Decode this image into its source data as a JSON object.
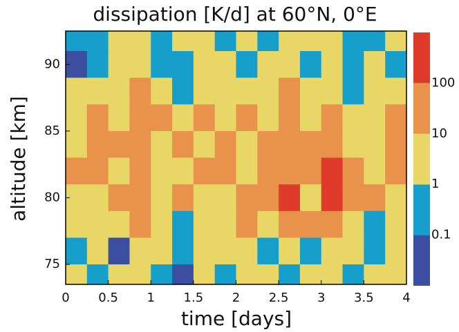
{
  "chart_data": {
    "type": "contour",
    "title": "dissipation [K/d] at 60°N, 0°E",
    "x_label": "time [days]",
    "y_label": "altitude [km]",
    "x": [
      0.125,
      0.375,
      0.625,
      0.875,
      1.125,
      1.375,
      1.625,
      1.875,
      2.125,
      2.375,
      2.625,
      2.875,
      3.125,
      3.375,
      3.625,
      3.875
    ],
    "y": [
      92,
      90,
      88,
      86,
      84,
      82,
      80,
      78,
      76,
      74
    ],
    "z": [
      [
        0.5,
        0.5,
        5,
        5,
        0.5,
        5,
        5,
        0.5,
        5,
        0.5,
        5,
        5,
        5,
        0.5,
        0.5,
        5
      ],
      [
        0.05,
        0.5,
        5,
        5,
        0.5,
        0.5,
        5,
        5,
        0.5,
        5,
        5,
        0.5,
        5,
        0.5,
        5,
        0.5
      ],
      [
        5,
        5,
        5,
        50,
        5,
        0.5,
        5,
        5,
        5,
        5,
        50,
        5,
        5,
        0.5,
        5,
        5
      ],
      [
        5,
        50,
        5,
        50,
        50,
        5,
        50,
        5,
        50,
        5,
        50,
        5,
        50,
        5,
        5,
        50
      ],
      [
        5,
        50,
        50,
        50,
        5,
        50,
        5,
        50,
        5,
        50,
        50,
        50,
        50,
        5,
        5,
        50
      ],
      [
        50,
        50,
        5,
        50,
        5,
        5,
        50,
        50,
        5,
        50,
        50,
        50,
        500,
        50,
        5,
        50
      ],
      [
        5,
        5,
        50,
        50,
        5,
        50,
        5,
        5,
        50,
        50,
        500,
        5,
        500,
        50,
        50,
        5
      ],
      [
        5,
        5,
        5,
        50,
        5,
        0.5,
        5,
        5,
        50,
        5,
        50,
        50,
        50,
        5,
        0.5,
        5
      ],
      [
        0.5,
        5,
        0.05,
        5,
        5,
        0.5,
        5,
        5,
        5,
        0.5,
        5,
        0.5,
        5,
        5,
        0.5,
        5
      ],
      [
        5,
        0.5,
        5,
        5,
        0.5,
        0.05,
        5,
        0.5,
        5,
        5,
        0.5,
        5,
        5,
        0.5,
        5,
        5
      ]
    ],
    "xlim": [
      0,
      4
    ],
    "xticks": [
      0,
      0.5,
      1,
      1.5,
      2,
      2.5,
      3,
      3.5,
      4
    ],
    "ylim": [
      73.5,
      92.5
    ],
    "yticks": [
      75,
      80,
      85,
      90
    ],
    "levels": [
      0.1,
      1,
      10,
      100
    ],
    "colors": [
      "#3b4ea0",
      "#179fcc",
      "#e8d766",
      "#e8924b",
      "#e03a2b"
    ],
    "clim": [
      0.01,
      1000
    ],
    "colorbar_log": true
  }
}
